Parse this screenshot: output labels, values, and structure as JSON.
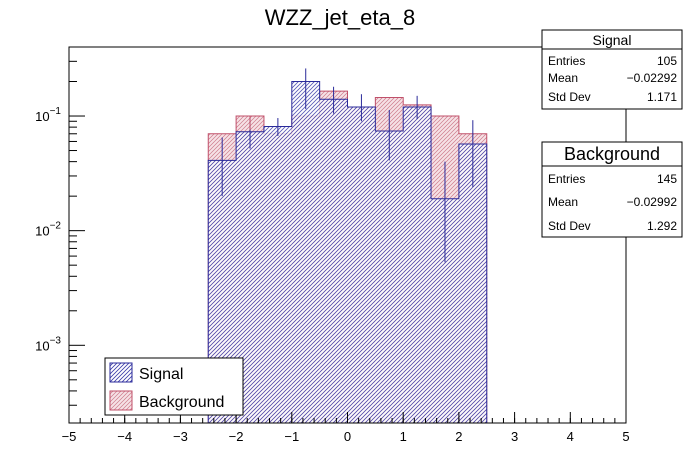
{
  "chart_data": {
    "type": "bar",
    "title": "WZZ_jet_eta_8",
    "xlabel": "",
    "ylabel": "",
    "xlim": [
      -5,
      5
    ],
    "ylim": [
      0.00021,
      0.4
    ],
    "yscale": "log",
    "x_ticks": [
      -5,
      -4,
      -3,
      -2,
      -1,
      0,
      1,
      2,
      3,
      4,
      5
    ],
    "x_tick_labels": [
      "−5",
      "−4",
      "−3",
      "−2",
      "−1",
      "0",
      "1",
      "2",
      "3",
      "4",
      "5"
    ],
    "y_ticks": [
      0.001,
      0.01,
      0.1
    ],
    "y_tick_base": "10",
    "y_tick_exponents": [
      "−3",
      "−2",
      "−1"
    ],
    "bin_edges": [
      -2.5,
      -2.0,
      -1.5,
      -1.0,
      -0.5,
      0.0,
      0.5,
      1.0,
      1.5,
      2.0,
      2.5
    ],
    "series": [
      {
        "name": "Signal",
        "color": "#2a2a9a",
        "values": [
          0.041,
          0.073,
          0.081,
          0.2,
          0.14,
          0.12,
          0.074,
          0.12,
          0.019,
          0.057
        ],
        "err_low": [
          0.021,
          0.021,
          0.014,
          0.085,
          0.035,
          0.03,
          0.033,
          0.026,
          0.0137,
          0.033
        ],
        "err_high": [
          0.024,
          0.023,
          0.015,
          0.06,
          0.04,
          0.035,
          0.039,
          0.03,
          0.021,
          0.035
        ],
        "stats": {
          "title": "Signal",
          "entries_label": "Entries",
          "entries": "105",
          "mean_label": "Mean",
          "mean": "−0.02292",
          "std_label": "Std Dev",
          "std": "1.171"
        }
      },
      {
        "name": "Background",
        "color": "#c0506a",
        "values": [
          0.07,
          0.1,
          0.07,
          0.1,
          0.165,
          0.12,
          0.145,
          0.125,
          0.1,
          0.07
        ],
        "err_low": [
          0.0,
          0.024,
          0.0,
          0.0,
          0.0,
          0.0,
          0.0,
          0.0,
          0.0,
          0.0
        ],
        "err_high": [
          0.0,
          0.0,
          0.0,
          0.0,
          0.0,
          0.0,
          0.0,
          0.0,
          0.0,
          0.0
        ],
        "stats": {
          "title": "Background",
          "entries_label": "Entries",
          "entries": "145",
          "mean_label": "Mean",
          "mean": "−0.02992",
          "std_label": "Std Dev",
          "std": "1.292"
        }
      }
    ],
    "legend": {
      "position": "bottom-left",
      "entries": [
        "Signal",
        "Background"
      ]
    }
  }
}
